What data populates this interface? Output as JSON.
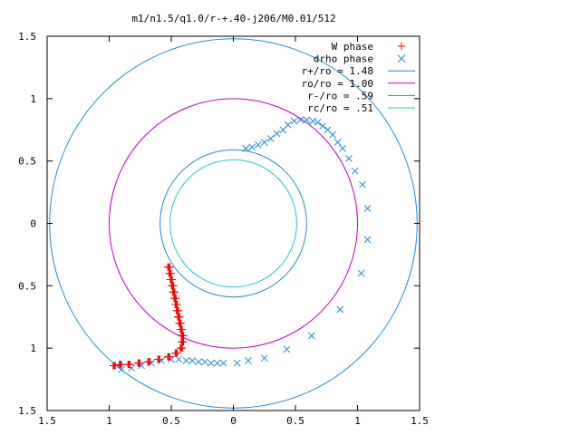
{
  "chart_data": {
    "type": "scatter",
    "title": "m1/n1.5/q1.0/r-+.40-j206/M0.01/512",
    "xlim": [
      -1.5,
      1.5
    ],
    "ylim": [
      -1.5,
      1.5
    ],
    "x_ticks": [
      {
        "value": -1.5,
        "label": "1.5"
      },
      {
        "value": -1,
        "label": "1"
      },
      {
        "value": -0.5,
        "label": "0.5"
      },
      {
        "value": 0,
        "label": "0"
      },
      {
        "value": 0.5,
        "label": "0.5"
      },
      {
        "value": 1,
        "label": "1"
      },
      {
        "value": 1.5,
        "label": "1.5"
      }
    ],
    "y_ticks": [
      {
        "value": 1.5,
        "label": "1.5"
      },
      {
        "value": 1,
        "label": "1"
      },
      {
        "value": 0.5,
        "label": "0.5"
      },
      {
        "value": 0,
        "label": "0"
      },
      {
        "value": -0.5,
        "label": "0.5"
      },
      {
        "value": -1,
        "label": "1"
      },
      {
        "value": -1.5,
        "label": "1.5"
      }
    ],
    "legend_position": "top-right",
    "series": [
      {
        "name": "W phase",
        "marker": "plus",
        "color": "#ff0000",
        "points": [
          [
            -0.52,
            -0.35
          ],
          [
            -0.51,
            -0.4
          ],
          [
            -0.5,
            -0.45
          ],
          [
            -0.49,
            -0.5
          ],
          [
            -0.48,
            -0.55
          ],
          [
            -0.47,
            -0.6
          ],
          [
            -0.46,
            -0.65
          ],
          [
            -0.45,
            -0.7
          ],
          [
            -0.44,
            -0.75
          ],
          [
            -0.43,
            -0.8
          ],
          [
            -0.42,
            -0.85
          ],
          [
            -0.41,
            -0.9
          ],
          [
            -0.41,
            -0.95
          ],
          [
            -0.42,
            -1.0
          ],
          [
            -0.46,
            -1.04
          ],
          [
            -0.52,
            -1.07
          ],
          [
            -0.6,
            -1.09
          ],
          [
            -0.68,
            -1.11
          ],
          [
            -0.76,
            -1.12
          ],
          [
            -0.84,
            -1.13
          ],
          [
            -0.91,
            -1.13
          ],
          [
            -0.96,
            -1.14
          ]
        ]
      },
      {
        "name": "drho phase",
        "marker": "cross",
        "color": "#1f8bd6",
        "points": [
          [
            -0.9,
            -1.17
          ],
          [
            -0.82,
            -1.16
          ],
          [
            -0.74,
            -1.14
          ],
          [
            -0.66,
            -1.12
          ],
          [
            -0.58,
            -1.1
          ],
          [
            -0.5,
            -1.09
          ],
          [
            -0.44,
            -1.09
          ],
          [
            -0.38,
            -1.1
          ],
          [
            -0.33,
            -1.1
          ],
          [
            -0.28,
            -1.11
          ],
          [
            -0.23,
            -1.11
          ],
          [
            -0.18,
            -1.12
          ],
          [
            -0.13,
            -1.12
          ],
          [
            -0.08,
            -1.12
          ],
          [
            0.03,
            -1.12
          ],
          [
            0.12,
            -1.1
          ],
          [
            0.25,
            -1.08
          ],
          [
            0.43,
            -1.01
          ],
          [
            0.63,
            -0.9
          ],
          [
            0.86,
            -0.69
          ],
          [
            1.03,
            -0.4
          ],
          [
            1.08,
            -0.13
          ],
          [
            1.08,
            0.12
          ],
          [
            1.04,
            0.31
          ],
          [
            0.98,
            0.42
          ],
          [
            0.93,
            0.52
          ],
          [
            0.88,
            0.6
          ],
          [
            0.84,
            0.65
          ],
          [
            0.8,
            0.71
          ],
          [
            0.76,
            0.75
          ],
          [
            0.72,
            0.78
          ],
          [
            0.68,
            0.81
          ],
          [
            0.64,
            0.82
          ],
          [
            0.59,
            0.83
          ],
          [
            0.54,
            0.83
          ],
          [
            0.49,
            0.82
          ],
          [
            0.44,
            0.79
          ],
          [
            0.4,
            0.75
          ],
          [
            0.35,
            0.72
          ],
          [
            0.3,
            0.68
          ],
          [
            0.25,
            0.65
          ],
          [
            0.2,
            0.63
          ],
          [
            0.15,
            0.61
          ],
          [
            0.1,
            0.6
          ]
        ]
      },
      {
        "name": "r+/ro = 1.48",
        "marker": "circle",
        "color": "#1f8bd6",
        "radius": 1.48
      },
      {
        "name": "ro/ro = 1.00",
        "marker": "circle",
        "color": "#c000c0",
        "radius": 1.0
      },
      {
        "name": "r-/ro = .59",
        "marker": "circle",
        "color": "#1f8bd6",
        "radius": 0.59
      },
      {
        "name": "rc/ro = .51",
        "marker": "circle",
        "color": "#20c8c8",
        "radius": 0.51
      }
    ]
  }
}
